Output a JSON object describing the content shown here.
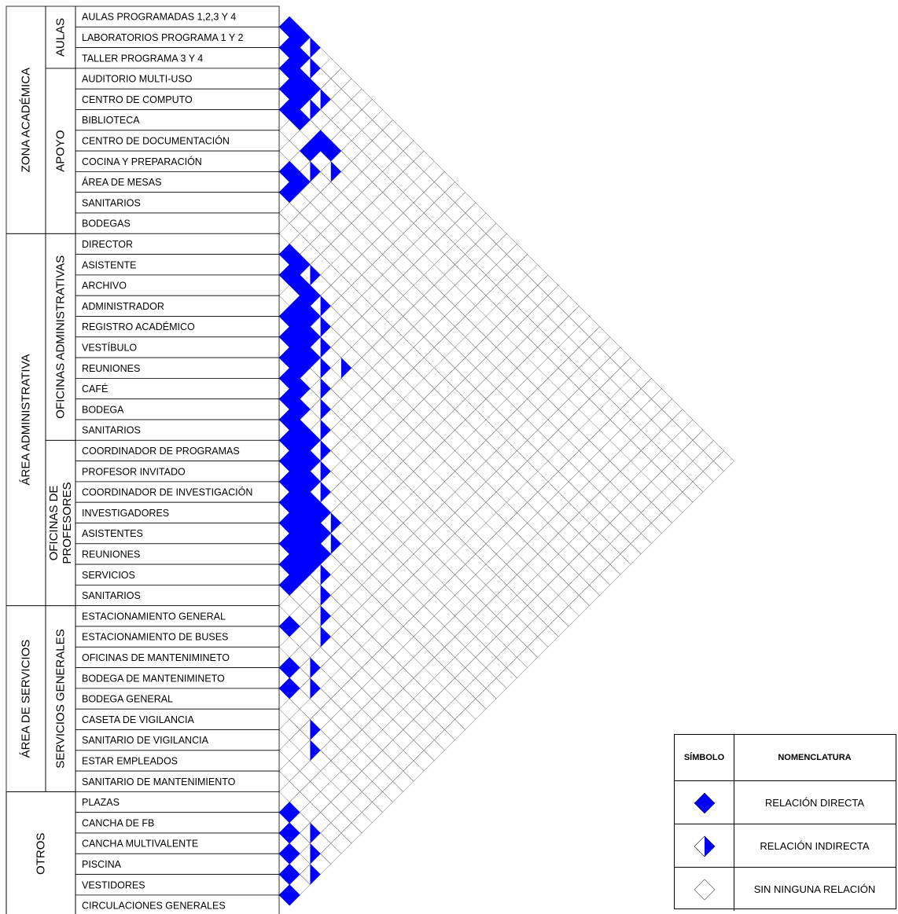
{
  "colors": {
    "direct": "#0000ff",
    "line": "#000000",
    "grid": "#555555"
  },
  "zones": [
    {
      "label": "ZONA ACADÉMICA",
      "start": 0,
      "end": 11
    },
    {
      "label": "ÁREA ADMINISTRATIVA",
      "start": 11,
      "end": 29
    },
    {
      "label": "ÁREA DE SERVICIOS",
      "start": 29,
      "end": 38
    },
    {
      "label": "OTROS",
      "start": 38,
      "end": 44
    }
  ],
  "subzones": [
    {
      "lines": [
        "AULAS"
      ],
      "start": 0,
      "end": 3
    },
    {
      "lines": [
        "APOYO"
      ],
      "start": 3,
      "end": 11
    },
    {
      "lines": [
        "OFICINAS ADMINISTRATIVAS"
      ],
      "start": 11,
      "end": 21
    },
    {
      "lines": [
        "OFICINAS DE",
        "PROFESORES"
      ],
      "start": 21,
      "end": 29
    },
    {
      "lines": [
        "SERVICIOS GENERALES"
      ],
      "start": 29,
      "end": 38
    }
  ],
  "spaces": [
    "AULAS PROGRAMADAS 1,2,3 Y 4",
    "LABORATORIOS PROGRAMA 1 Y 2",
    "TALLER PROGRAMA 3 Y 4",
    "AUDITORIO MULTI-USO",
    "CENTRO DE COMPUTO",
    "BIBLIOTECA",
    "CENTRO DE DOCUMENTACIÓN",
    "COCINA Y PREPARACIÓN",
    "ÁREA DE MESAS",
    "SANITARIOS",
    "BODEGAS",
    "DIRECTOR",
    "ASISTENTE",
    "ARCHIVO",
    "ADMINISTRADOR",
    "REGISTRO ACADÉMICO",
    "VESTÍBULO",
    "REUNIONES",
    "CAFÉ",
    "BODEGA",
    "SANITARIOS",
    "COORDINADOR DE PROGRAMAS",
    "PROFESOR INVITADO",
    "COORDINADOR DE INVESTIGACIÓN",
    "INVESTIGADORES",
    "ASISTENTES",
    "REUNIONES",
    "SERVICIOS",
    "SANITARIOS",
    "ESTACIONAMIENTO GENERAL",
    "ESTACIONAMIENTO DE BUSES",
    "OFICINAS DE MANTENIMINETO",
    "BODEGA DE MANTENIMINETO",
    "BODEGA GENERAL",
    "CASETA DE VIGILANCIA",
    "SANITARIO DE VIGILANCIA",
    "ESTAR EMPLEADOS",
    "SANITARIO DE MANTENIMIENTO",
    "PLAZAS",
    "CANCHA DE FB",
    "CANCHA MULTIVALENTE",
    "PISCINA",
    "VESTIDORES",
    "CIRCULACIONES GENERALES"
  ],
  "relations": {
    "direct": [
      [
        0,
        1
      ],
      [
        0,
        2
      ],
      [
        1,
        2
      ],
      [
        1,
        3
      ],
      [
        2,
        3
      ],
      [
        2,
        4
      ],
      [
        2,
        5
      ],
      [
        3,
        4
      ],
      [
        3,
        5
      ],
      [
        4,
        5
      ],
      [
        4,
        6
      ],
      [
        4,
        8
      ],
      [
        4,
        9
      ],
      [
        5,
        8
      ],
      [
        7,
        8
      ],
      [
        7,
        9
      ],
      [
        8,
        9
      ],
      [
        11,
        12
      ],
      [
        11,
        13
      ],
      [
        12,
        13
      ],
      [
        12,
        14
      ],
      [
        12,
        15
      ],
      [
        13,
        15
      ],
      [
        13,
        16
      ],
      [
        14,
        15
      ],
      [
        14,
        16
      ],
      [
        14,
        17
      ],
      [
        15,
        16
      ],
      [
        15,
        17
      ],
      [
        15,
        18
      ],
      [
        16,
        17
      ],
      [
        16,
        18
      ],
      [
        17,
        18
      ],
      [
        17,
        19
      ],
      [
        18,
        19
      ],
      [
        18,
        20
      ],
      [
        19,
        20
      ],
      [
        19,
        21
      ],
      [
        19,
        22
      ],
      [
        20,
        21
      ],
      [
        20,
        22
      ],
      [
        20,
        23
      ],
      [
        21,
        22
      ],
      [
        21,
        23
      ],
      [
        21,
        24
      ],
      [
        22,
        23
      ],
      [
        22,
        24
      ],
      [
        22,
        25
      ],
      [
        22,
        26
      ],
      [
        23,
        24
      ],
      [
        23,
        25
      ],
      [
        23,
        26
      ],
      [
        23,
        27
      ],
      [
        24,
        25
      ],
      [
        24,
        26
      ],
      [
        24,
        27
      ],
      [
        24,
        28
      ],
      [
        25,
        26
      ],
      [
        25,
        27
      ],
      [
        25,
        28
      ],
      [
        26,
        27
      ],
      [
        26,
        28
      ],
      [
        27,
        28
      ],
      [
        29,
        30
      ],
      [
        31,
        32
      ],
      [
        32,
        33
      ],
      [
        38,
        39
      ],
      [
        39,
        40
      ],
      [
        40,
        41
      ],
      [
        41,
        42
      ],
      [
        42,
        43
      ]
    ],
    "indirect": [
      [
        0,
        3
      ],
      [
        1,
        4
      ],
      [
        2,
        6
      ],
      [
        3,
        6
      ],
      [
        5,
        10
      ],
      [
        6,
        9
      ],
      [
        11,
        14
      ],
      [
        12,
        16
      ],
      [
        13,
        17
      ],
      [
        14,
        18
      ],
      [
        14,
        20
      ],
      [
        15,
        19
      ],
      [
        16,
        20
      ],
      [
        17,
        21
      ],
      [
        18,
        22
      ],
      [
        19,
        23
      ],
      [
        20,
        24
      ],
      [
        21,
        25
      ],
      [
        22,
        27
      ],
      [
        23,
        28
      ],
      [
        25,
        29
      ],
      [
        26,
        30
      ],
      [
        27,
        31
      ],
      [
        28,
        32
      ],
      [
        30,
        33
      ],
      [
        31,
        34
      ],
      [
        33,
        36
      ],
      [
        34,
        37
      ],
      [
        38,
        41
      ],
      [
        39,
        42
      ],
      [
        40,
        43
      ]
    ]
  },
  "legend": {
    "symbol_header": "SÍMBOLO",
    "nomenclature_header": "NOMENCLATURA",
    "direct": "RELACIÓN DIRECTA",
    "indirect": "RELACIÓN INDIRECTA",
    "none": "SIN NINGUNA RELACIÓN"
  }
}
